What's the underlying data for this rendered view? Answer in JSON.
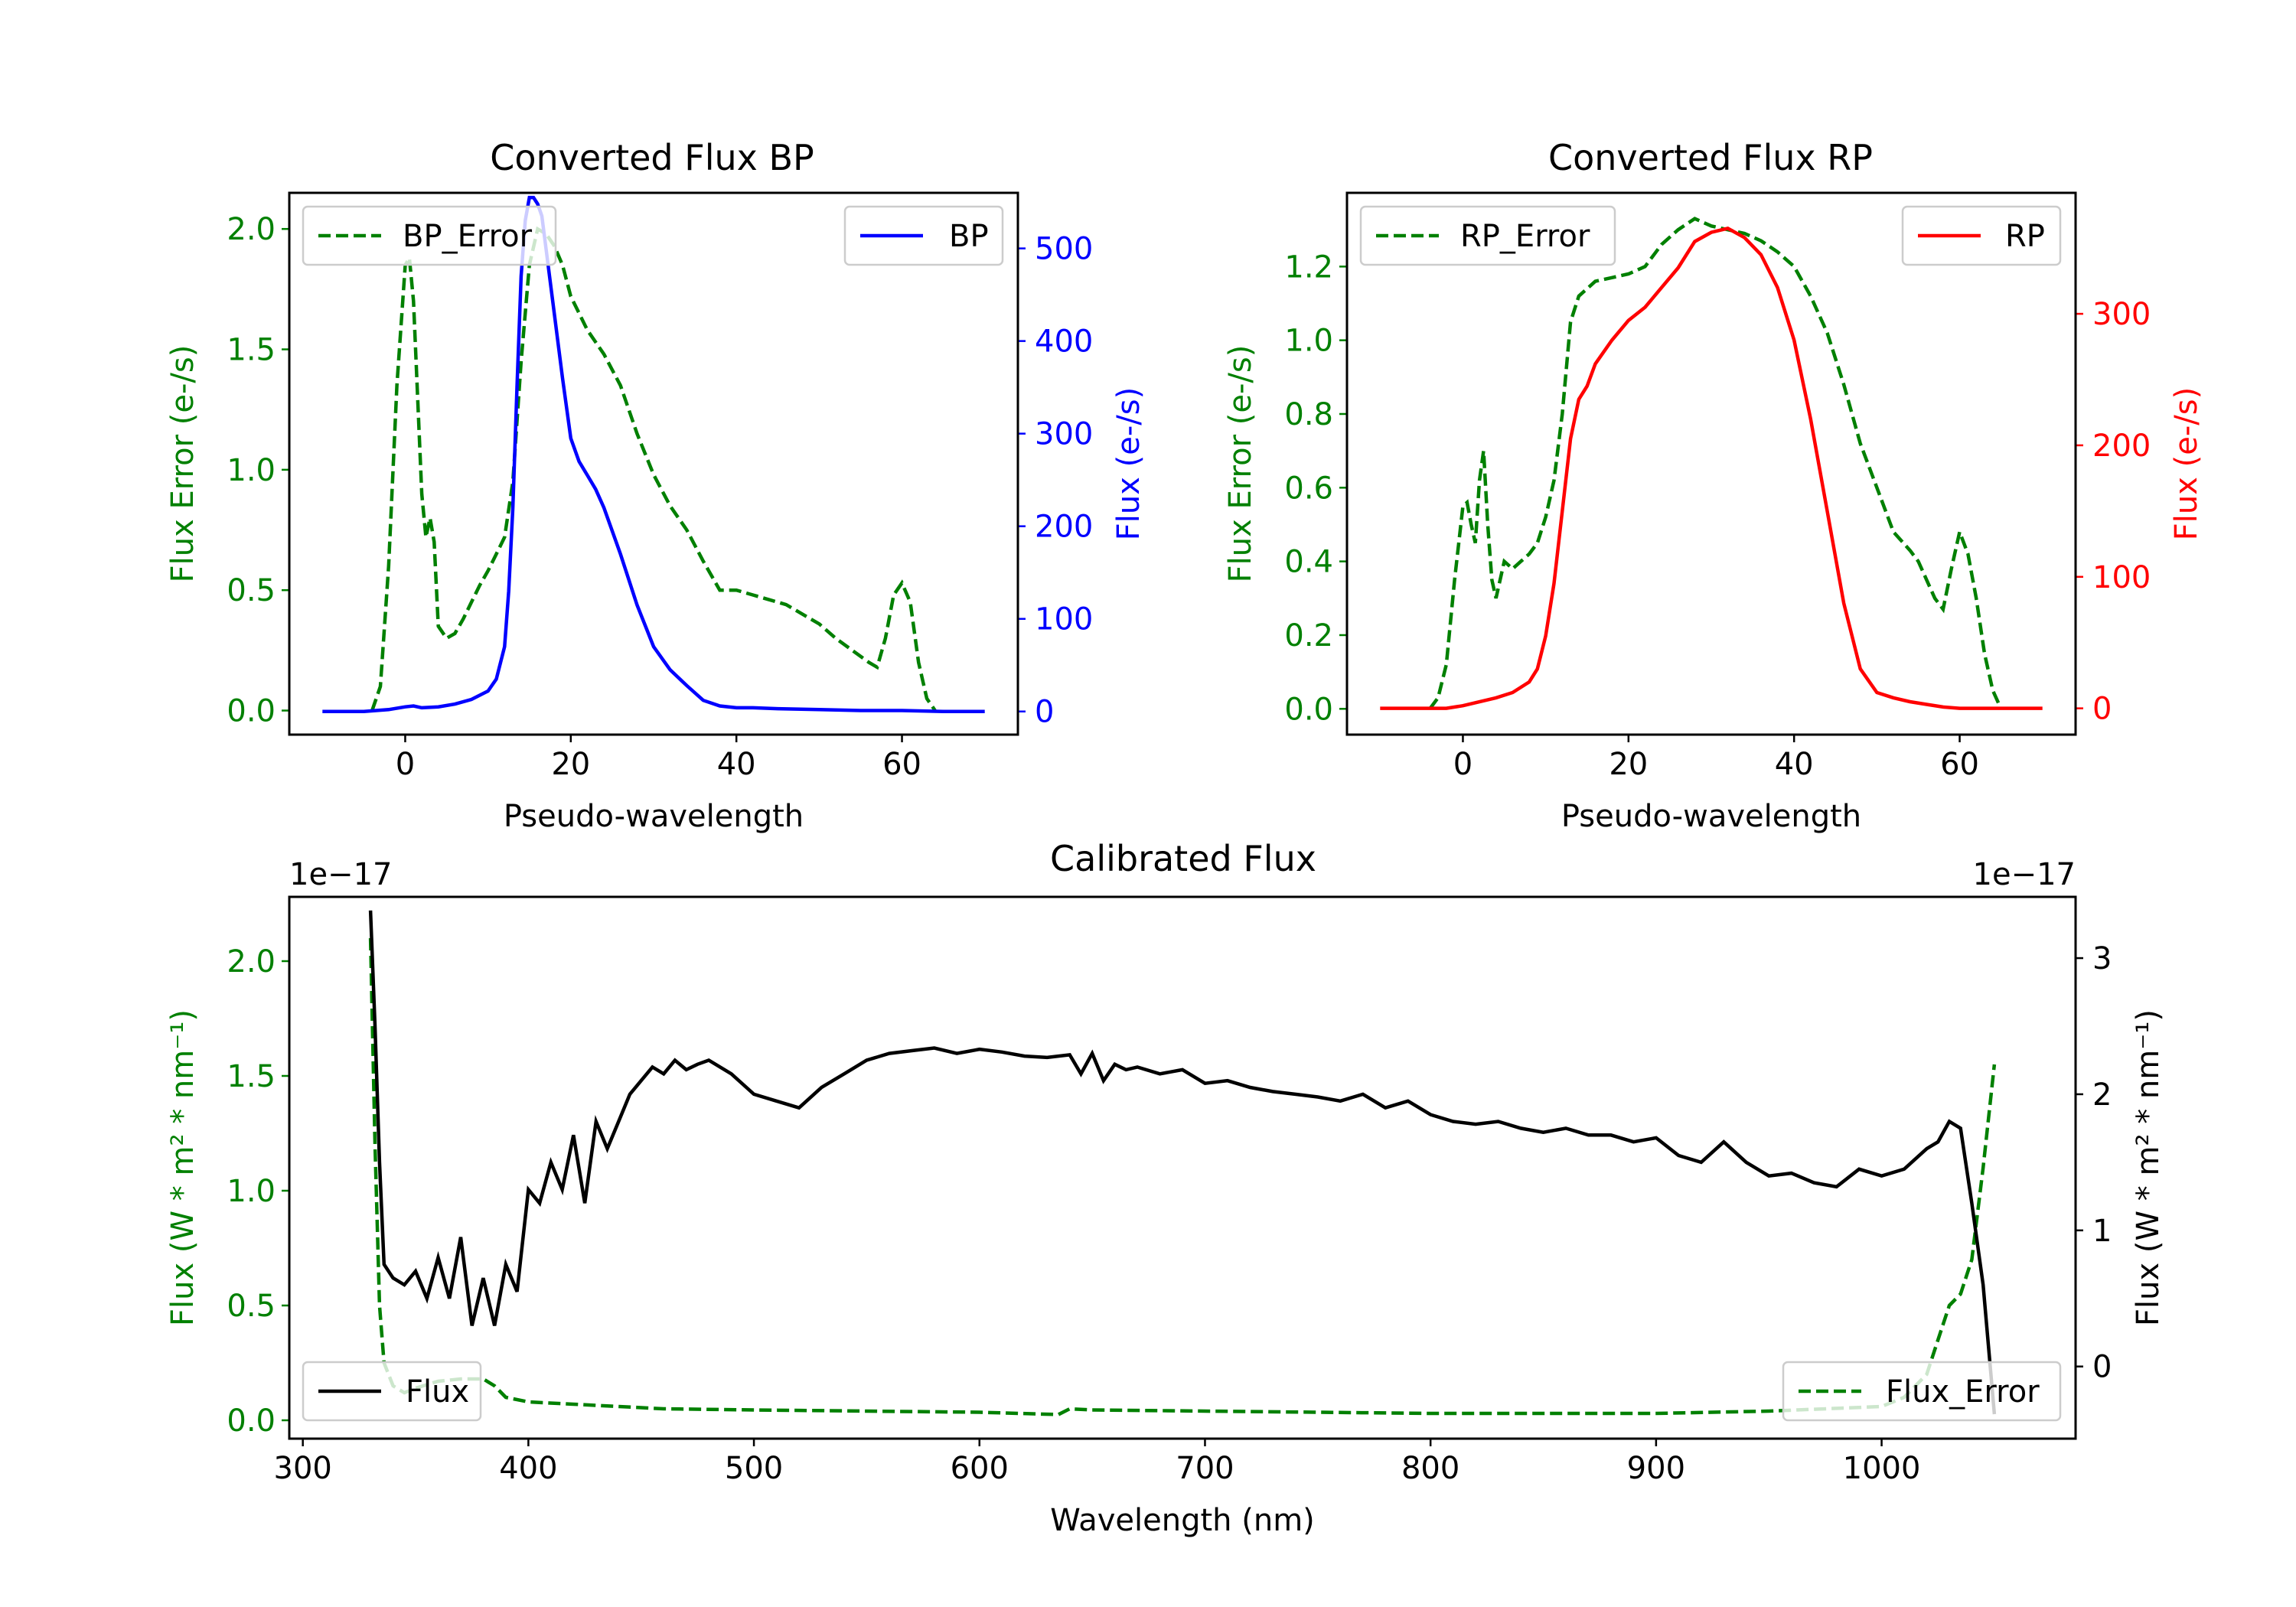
{
  "colors": {
    "green": "#008000",
    "blue": "#0000ff",
    "red": "#ff0000",
    "black": "#000000"
  },
  "chart_data": [
    {
      "type": "line",
      "title": "Converted Flux BP",
      "xlabel": "Pseudo-wavelength",
      "ylabel_left": "Flux Error (e-/s)",
      "ylabel_right": "Flux (e-/s)",
      "xlim": [
        -14,
        74
      ],
      "ylim_left": [
        -0.1,
        2.15
      ],
      "ylim_right": [
        -25,
        560
      ],
      "xticks": [
        0,
        20,
        40,
        60
      ],
      "xtick_labels": [
        "0",
        "20",
        "40",
        "60"
      ],
      "yticks_left": [
        0,
        0.5,
        1,
        1.5,
        2
      ],
      "ytick_labels_left": [
        "0.0",
        "0.5",
        "1.0",
        "1.5",
        "2.0"
      ],
      "yticks_right": [
        0,
        100,
        200,
        300,
        400,
        500
      ],
      "ytick_labels_right": [
        "0",
        "100",
        "200",
        "300",
        "400",
        "500"
      ],
      "legend_left_label": "BP_Error",
      "legend_right_label": "BP",
      "series": [
        {
          "name": "BP_Error",
          "axis": "left",
          "color": "#008000",
          "dash": true,
          "x": [
            -4,
            -3,
            -2,
            -1,
            0,
            0.5,
            1,
            2,
            2.5,
            3,
            3.5,
            4,
            5,
            6,
            7,
            8,
            9,
            10,
            11,
            12,
            13,
            14,
            15,
            16,
            17,
            18,
            19,
            20,
            22,
            24,
            26,
            28,
            30,
            32,
            34,
            36,
            38,
            40,
            42,
            44,
            46,
            48,
            50,
            52,
            54,
            56,
            57,
            58,
            59,
            60,
            61,
            62,
            63,
            64
          ],
          "y": [
            0,
            0.1,
            0.6,
            1.35,
            1.85,
            1.88,
            1.7,
            0.9,
            0.72,
            0.8,
            0.7,
            0.35,
            0.3,
            0.32,
            0.38,
            0.45,
            0.52,
            0.58,
            0.65,
            0.72,
            0.95,
            1.45,
            1.85,
            2.0,
            1.98,
            1.93,
            1.85,
            1.72,
            1.58,
            1.48,
            1.35,
            1.15,
            0.98,
            0.85,
            0.75,
            0.62,
            0.5,
            0.5,
            0.48,
            0.46,
            0.44,
            0.4,
            0.36,
            0.3,
            0.25,
            0.2,
            0.18,
            0.3,
            0.48,
            0.53,
            0.45,
            0.2,
            0.05,
            0
          ]
        },
        {
          "name": "BP",
          "axis": "right",
          "color": "#0000ff",
          "dash": false,
          "x": [
            -10,
            -5,
            -2,
            0,
            1,
            2,
            4,
            6,
            8,
            10,
            11,
            12,
            12.5,
            13,
            13.5,
            14,
            14.5,
            15,
            15.5,
            16,
            16.5,
            17,
            18,
            19,
            20,
            21,
            22,
            23,
            24,
            26,
            28,
            30,
            32,
            34,
            36,
            38,
            40,
            42,
            45,
            50,
            55,
            60,
            65,
            70
          ],
          "y": [
            0,
            0,
            2,
            5,
            6,
            4,
            5,
            8,
            13,
            22,
            35,
            70,
            130,
            220,
            350,
            470,
            530,
            555,
            555,
            548,
            535,
            500,
            430,
            360,
            295,
            270,
            255,
            240,
            220,
            170,
            115,
            70,
            45,
            28,
            12,
            6,
            4,
            4,
            3,
            2,
            1,
            1,
            0,
            0
          ]
        }
      ]
    },
    {
      "type": "line",
      "title": "Converted Flux RP",
      "xlabel": "Pseudo-wavelength",
      "ylabel_left": "Flux Error (e-/s)",
      "ylabel_right": "Flux (e-/s)",
      "xlim": [
        -14,
        74
      ],
      "ylim_left": [
        -0.07,
        1.4
      ],
      "ylim_right": [
        -20,
        392
      ],
      "xticks": [
        0,
        20,
        40,
        60
      ],
      "xtick_labels": [
        "0",
        "20",
        "40",
        "60"
      ],
      "yticks_left": [
        0,
        0.2,
        0.4,
        0.6,
        0.8,
        1.0,
        1.2
      ],
      "ytick_labels_left": [
        "0.0",
        "0.2",
        "0.4",
        "0.6",
        "0.8",
        "1.0",
        "1.2"
      ],
      "yticks_right": [
        0,
        100,
        200,
        300
      ],
      "ytick_labels_right": [
        "0",
        "100",
        "200",
        "300"
      ],
      "legend_left_label": "RP_Error",
      "legend_right_label": "RP",
      "series": [
        {
          "name": "RP_Error",
          "axis": "left",
          "color": "#008000",
          "dash": true,
          "x": [
            -4,
            -3,
            -2,
            -1,
            0,
            0.5,
            1,
            1.5,
            2,
            2.5,
            3,
            3.5,
            4,
            5,
            6,
            7,
            8,
            9,
            10,
            11,
            12,
            13,
            14,
            15,
            16,
            18,
            20,
            22,
            24,
            26,
            28,
            30,
            32,
            34,
            36,
            38,
            40,
            42,
            44,
            46,
            48,
            50,
            52,
            54,
            55,
            56,
            57,
            58,
            59,
            60,
            61,
            62,
            63,
            64,
            65
          ],
          "y": [
            0,
            0.03,
            0.12,
            0.35,
            0.55,
            0.56,
            0.5,
            0.45,
            0.62,
            0.7,
            0.5,
            0.35,
            0.3,
            0.4,
            0.38,
            0.4,
            0.42,
            0.45,
            0.52,
            0.62,
            0.8,
            1.05,
            1.12,
            1.14,
            1.16,
            1.17,
            1.18,
            1.2,
            1.26,
            1.3,
            1.33,
            1.31,
            1.3,
            1.29,
            1.27,
            1.24,
            1.2,
            1.12,
            1.02,
            0.88,
            0.72,
            0.6,
            0.48,
            0.43,
            0.4,
            0.35,
            0.3,
            0.27,
            0.38,
            0.48,
            0.42,
            0.3,
            0.15,
            0.05,
            0
          ]
        },
        {
          "name": "RP",
          "axis": "right",
          "color": "#ff0000",
          "dash": false,
          "x": [
            -10,
            -5,
            -2,
            0,
            2,
            4,
            6,
            8,
            9,
            10,
            11,
            12,
            13,
            14,
            15,
            16,
            18,
            20,
            22,
            24,
            26,
            28,
            30,
            32,
            34,
            36,
            38,
            40,
            42,
            44,
            46,
            48,
            50,
            52,
            54,
            56,
            58,
            60,
            65,
            70
          ],
          "y": [
            0,
            0,
            0,
            2,
            5,
            8,
            12,
            20,
            30,
            55,
            95,
            150,
            205,
            235,
            245,
            262,
            280,
            295,
            305,
            320,
            335,
            355,
            362,
            365,
            358,
            345,
            320,
            280,
            220,
            150,
            80,
            30,
            12,
            8,
            5,
            3,
            1,
            0,
            0,
            0
          ]
        }
      ]
    },
    {
      "type": "line",
      "title": "Calibrated Flux",
      "xlabel": "Wavelength (nm)",
      "ylabel_left": "Flux (W * m² * nm⁻¹)",
      "ylabel_right": "Flux (W * m² * nm⁻¹)",
      "offset_left": "1e−17",
      "offset_right": "1e−17",
      "xlim": [
        294,
        1086
      ],
      "ylim_left": [
        -0.08,
        2.28
      ],
      "ylim_right": [
        -0.53,
        3.45
      ],
      "xticks": [
        300,
        400,
        500,
        600,
        700,
        800,
        900,
        1000
      ],
      "xtick_labels": [
        "300",
        "400",
        "500",
        "600",
        "700",
        "800",
        "900",
        "1000"
      ],
      "yticks_left": [
        0,
        0.5,
        1,
        1.5,
        2
      ],
      "ytick_labels_left": [
        "0.0",
        "0.5",
        "1.0",
        "1.5",
        "2.0"
      ],
      "yticks_right": [
        0,
        1,
        2,
        3
      ],
      "ytick_labels_right": [
        "0",
        "1",
        "2",
        "3"
      ],
      "legend_left_label": "Flux",
      "legend_right_label": "Flux_Error",
      "series": [
        {
          "name": "Flux_Error",
          "axis": "left",
          "color": "#008000",
          "dash": true,
          "x": [
            330,
            332,
            334,
            336,
            340,
            345,
            350,
            360,
            370,
            380,
            385,
            390,
            400,
            420,
            440,
            460,
            500,
            550,
            600,
            635,
            640,
            650,
            700,
            750,
            800,
            850,
            900,
            950,
            1000,
            1010,
            1020,
            1025,
            1030,
            1035,
            1040,
            1045,
            1050
          ],
          "y": [
            2.1,
            1.2,
            0.5,
            0.25,
            0.15,
            0.12,
            0.14,
            0.17,
            0.18,
            0.18,
            0.15,
            0.1,
            0.08,
            0.07,
            0.06,
            0.05,
            0.045,
            0.04,
            0.035,
            0.025,
            0.05,
            0.045,
            0.04,
            0.035,
            0.03,
            0.03,
            0.03,
            0.04,
            0.06,
            0.1,
            0.2,
            0.35,
            0.5,
            0.55,
            0.7,
            1.1,
            1.55
          ]
        },
        {
          "name": "Flux",
          "axis": "right",
          "color": "#000000",
          "dash": false,
          "x": [
            330,
            332,
            334,
            336,
            340,
            345,
            350,
            355,
            360,
            365,
            370,
            375,
            380,
            385,
            390,
            395,
            400,
            405,
            410,
            415,
            420,
            425,
            430,
            435,
            440,
            445,
            450,
            455,
            460,
            465,
            470,
            475,
            480,
            490,
            500,
            510,
            520,
            530,
            540,
            550,
            560,
            570,
            580,
            590,
            600,
            610,
            620,
            630,
            640,
            645,
            650,
            655,
            660,
            665,
            670,
            680,
            690,
            700,
            710,
            720,
            730,
            740,
            750,
            760,
            770,
            780,
            790,
            800,
            810,
            820,
            830,
            840,
            850,
            860,
            870,
            880,
            890,
            900,
            910,
            920,
            930,
            940,
            950,
            960,
            970,
            980,
            990,
            1000,
            1010,
            1020,
            1025,
            1030,
            1035,
            1040,
            1045,
            1050
          ],
          "y": [
            3.35,
            2.5,
            1.5,
            0.75,
            0.65,
            0.6,
            0.7,
            0.5,
            0.8,
            0.5,
            0.95,
            0.3,
            0.65,
            0.3,
            0.75,
            0.55,
            1.3,
            1.2,
            1.5,
            1.3,
            1.7,
            1.2,
            1.8,
            1.6,
            1.8,
            2.0,
            2.1,
            2.2,
            2.15,
            2.25,
            2.18,
            2.22,
            2.25,
            2.15,
            2.0,
            1.95,
            1.9,
            2.05,
            2.15,
            2.25,
            2.3,
            2.32,
            2.34,
            2.3,
            2.33,
            2.31,
            2.28,
            2.27,
            2.29,
            2.15,
            2.3,
            2.1,
            2.22,
            2.18,
            2.2,
            2.15,
            2.18,
            2.08,
            2.1,
            2.05,
            2.02,
            2.0,
            1.98,
            1.95,
            2.0,
            1.9,
            1.95,
            1.85,
            1.8,
            1.78,
            1.8,
            1.75,
            1.72,
            1.75,
            1.7,
            1.7,
            1.65,
            1.68,
            1.55,
            1.5,
            1.65,
            1.5,
            1.4,
            1.42,
            1.35,
            1.32,
            1.45,
            1.4,
            1.45,
            1.6,
            1.65,
            1.8,
            1.75,
            1.2,
            0.6,
            -0.35
          ]
        }
      ]
    }
  ]
}
